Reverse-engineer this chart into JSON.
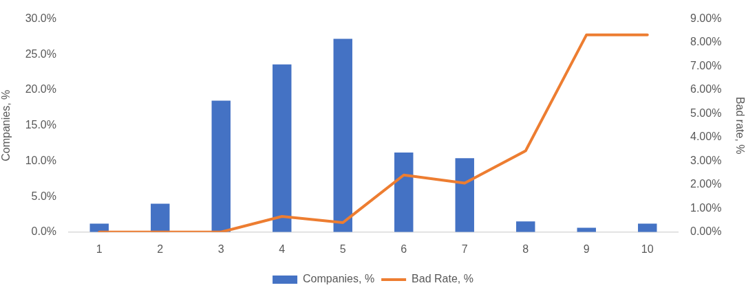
{
  "chart_data": {
    "type": "bar",
    "categories": [
      "1",
      "2",
      "3",
      "4",
      "5",
      "6",
      "7",
      "8",
      "9",
      "10"
    ],
    "series": [
      {
        "name": "Companies, %",
        "color": "#4472c4",
        "values": [
          1.2,
          4.0,
          18.5,
          23.6,
          27.2,
          11.2,
          10.4,
          1.5,
          0.6,
          1.2
        ]
      },
      {
        "name": "Bad Rate, %",
        "type": "line",
        "axis": "y2",
        "color": "#ed7d31",
        "values": [
          0,
          0,
          0,
          0.66,
          0.4,
          2.41,
          2.07,
          3.43,
          8.33,
          8.33
        ]
      }
    ],
    "ylabel": "Companies, %",
    "y2label": "Bad rate, %",
    "ylim": [
      0,
      30
    ],
    "yticks": [
      {
        "value": 0,
        "label": "0.0%"
      },
      {
        "value": 5,
        "label": "5.0%"
      },
      {
        "value": 10,
        "label": "10.0%"
      },
      {
        "value": 15,
        "label": "15.0%"
      },
      {
        "value": 20,
        "label": "20.0%"
      },
      {
        "value": 25,
        "label": "25.0%"
      },
      {
        "value": 30,
        "label": "30.0%"
      }
    ],
    "y2lim": [
      0,
      9
    ],
    "y2ticks": [
      {
        "value": 0,
        "label": "0.00%"
      },
      {
        "value": 1,
        "label": "1.00%"
      },
      {
        "value": 2,
        "label": "2.00%"
      },
      {
        "value": 3,
        "label": "3.00%"
      },
      {
        "value": 4,
        "label": "4.00%"
      },
      {
        "value": 5,
        "label": "5.00%"
      },
      {
        "value": 6,
        "label": "6.00%"
      },
      {
        "value": 7,
        "label": "7.00%"
      },
      {
        "value": 8,
        "label": "8.00%"
      },
      {
        "value": 9,
        "label": "9.00%"
      }
    ],
    "legend": "bottom",
    "marker": "none",
    "line_style": "solid"
  }
}
